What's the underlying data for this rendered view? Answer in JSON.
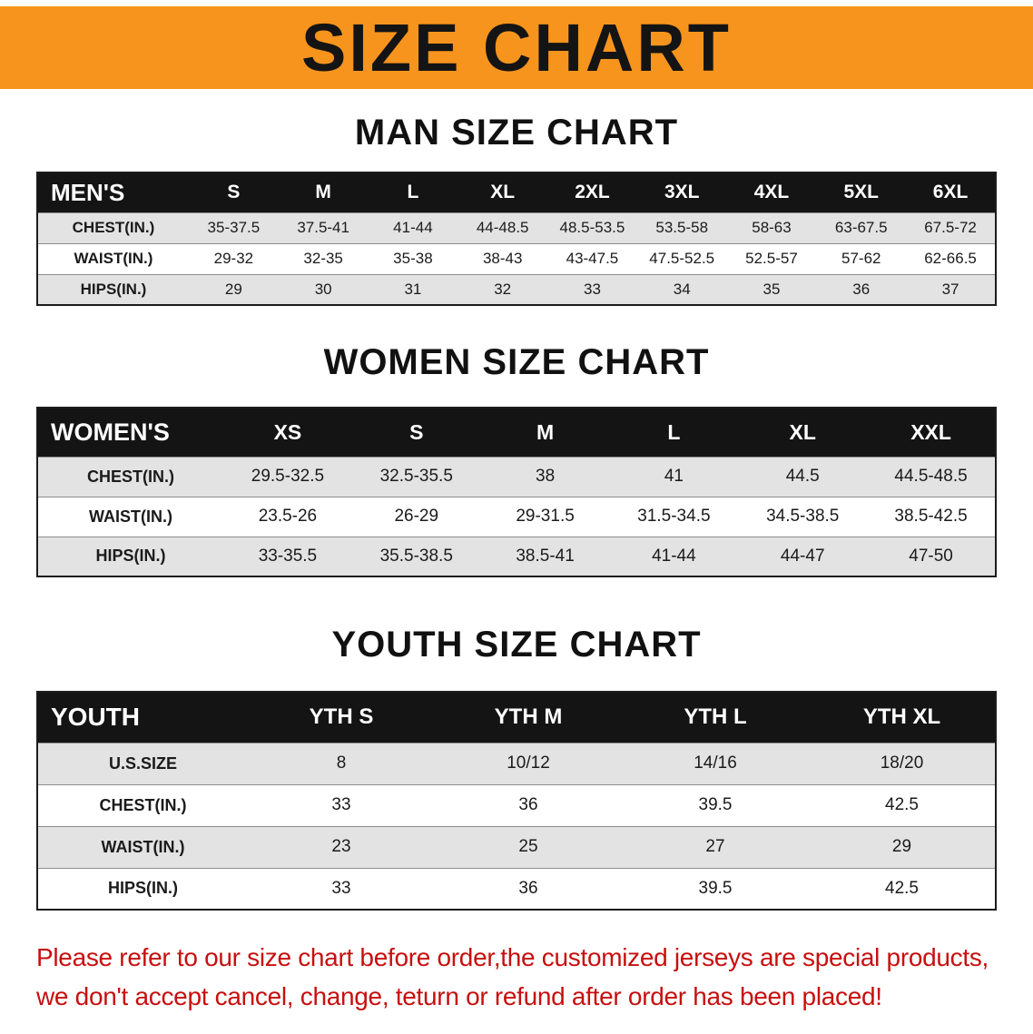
{
  "banner": {
    "title": "SIZE CHART",
    "bg_color": "#f7941d",
    "text_color": "#141414"
  },
  "sections": [
    {
      "heading": "MAN SIZE CHART",
      "table": {
        "header_label": "MEN'S",
        "columns": [
          "S",
          "M",
          "L",
          "XL",
          "2XL",
          "3XL",
          "4XL",
          "5XL",
          "6XL"
        ],
        "rows": [
          {
            "label": "CHEST(IN.)",
            "values": [
              "35-37.5",
              "37.5-41",
              "41-44",
              "44-48.5",
              "48.5-53.5",
              "53.5-58",
              "58-63",
              "63-67.5",
              "67.5-72"
            ]
          },
          {
            "label": "WAIST(IN.)",
            "values": [
              "29-32",
              "32-35",
              "35-38",
              "38-43",
              "43-47.5",
              "47.5-52.5",
              "52.5-57",
              "57-62",
              "62-66.5"
            ]
          },
          {
            "label": "HIPS(IN.)",
            "values": [
              "29",
              "30",
              "31",
              "32",
              "33",
              "34",
              "35",
              "36",
              "37"
            ]
          }
        ]
      }
    },
    {
      "heading": "WOMEN SIZE CHART",
      "table": {
        "header_label": "WOMEN'S",
        "columns": [
          "XS",
          "S",
          "M",
          "L",
          "XL",
          "XXL"
        ],
        "rows": [
          {
            "label": "CHEST(IN.)",
            "values": [
              "29.5-32.5",
              "32.5-35.5",
              "38",
              "41",
              "44.5",
              "44.5-48.5"
            ]
          },
          {
            "label": "WAIST(IN.)",
            "values": [
              "23.5-26",
              "26-29",
              "29-31.5",
              "31.5-34.5",
              "34.5-38.5",
              "38.5-42.5"
            ]
          },
          {
            "label": "HIPS(IN.)",
            "values": [
              "33-35.5",
              "35.5-38.5",
              "38.5-41",
              "41-44",
              "44-47",
              "47-50"
            ]
          }
        ]
      }
    },
    {
      "heading": "YOUTH SIZE CHART",
      "table": {
        "header_label": "YOUTH",
        "columns": [
          "YTH S",
          "YTH M",
          "YTH L",
          "YTH XL"
        ],
        "rows": [
          {
            "label": "U.S.SIZE",
            "values": [
              "8",
              "10/12",
              "14/16",
              "18/20"
            ]
          },
          {
            "label": "CHEST(IN.)",
            "values": [
              "33",
              "36",
              "39.5",
              "42.5"
            ]
          },
          {
            "label": "WAIST(IN.)",
            "values": [
              "23",
              "25",
              "27",
              "29"
            ]
          },
          {
            "label": "HIPS(IN.)",
            "values": [
              "33",
              "36",
              "39.5",
              "42.5"
            ]
          }
        ]
      }
    }
  ],
  "footer": {
    "lines": [
      "Please refer to our size chart before order,the customized jerseys are special products,",
      "we don't accept cancel, change, teturn or refund after order has been placed!"
    ],
    "text_color": "#c70f0f"
  }
}
